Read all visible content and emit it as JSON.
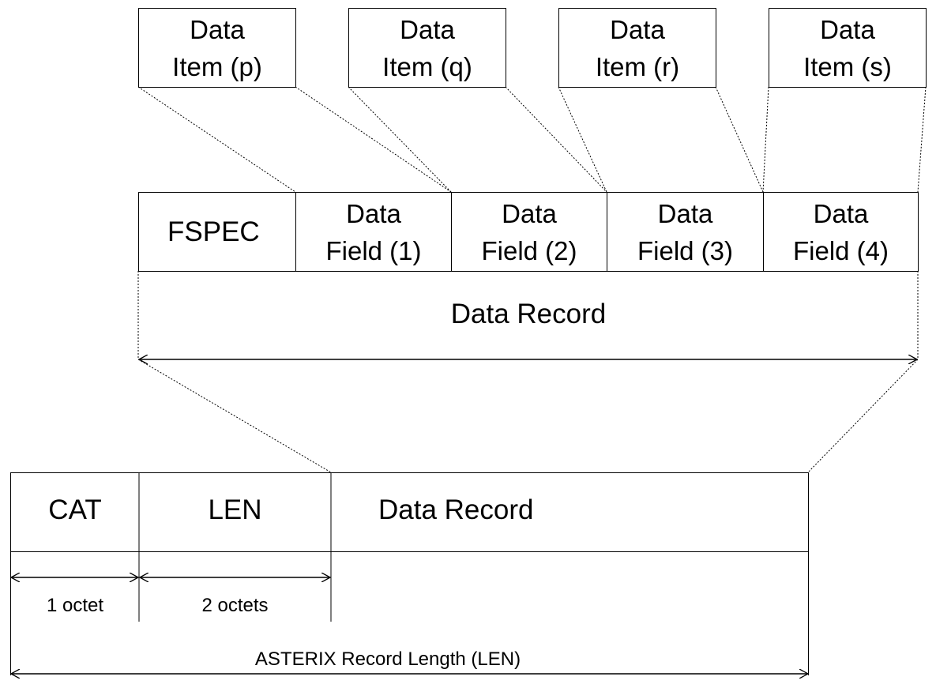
{
  "data_items": [
    {
      "line1": "Data",
      "line2": "Item (p)"
    },
    {
      "line1": "Data",
      "line2": "Item (q)"
    },
    {
      "line1": "Data",
      "line2": "Item (r)"
    },
    {
      "line1": "Data",
      "line2": "Item (s)"
    }
  ],
  "record": {
    "fspec": "FSPEC",
    "fields": [
      {
        "line1": "Data",
        "line2": "Field (1)"
      },
      {
        "line1": "Data",
        "line2": "Field (2)"
      },
      {
        "line1": "Data",
        "line2": "Field (3)"
      },
      {
        "line1": "Data",
        "line2": "Field (4)"
      }
    ],
    "label": "Data Record"
  },
  "asterix": {
    "cat": "CAT",
    "len": "LEN",
    "data_record": "Data Record",
    "cat_size": "1 octet",
    "len_size": "2 octets",
    "total_label": "ASTERIX Record Length (LEN)"
  },
  "colors": {
    "stroke": "#000000",
    "background": "#ffffff"
  }
}
